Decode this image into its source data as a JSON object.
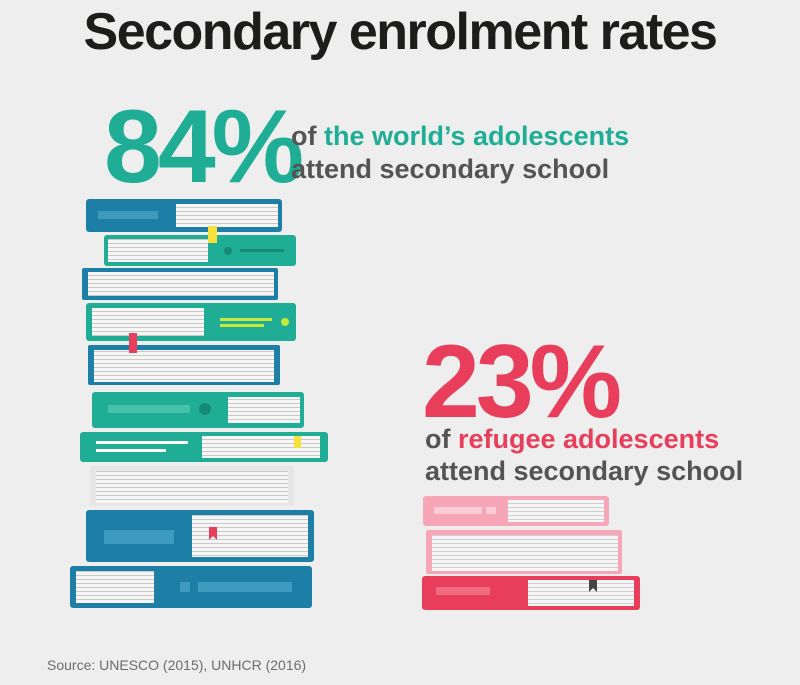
{
  "title": "Secondary enrolment rates",
  "world": {
    "percent": "84%",
    "value": 84,
    "line1_prefix": "of ",
    "line1_highlight": "the world’s adolescents",
    "line2": "attend secondary school"
  },
  "refugee": {
    "percent": "23%",
    "value": 23,
    "line1_prefix": "of ",
    "line1_highlight": "refugee adolescents",
    "line2": "attend secondary school"
  },
  "source": "Source: UNESCO (2015), UNHCR (2016)",
  "colors": {
    "teal": "#1fae95",
    "red": "#e83e5b",
    "blue": "#1d7fa6",
    "pink": "#f7a6b8",
    "text": "#545454"
  },
  "icons": {
    "big_stack": "book-stack-icon",
    "small_stack": "book-stack-icon"
  }
}
